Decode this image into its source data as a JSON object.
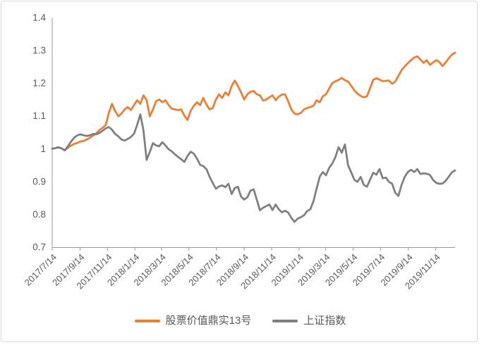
{
  "chart_data": {
    "type": "line",
    "title": "",
    "grid": "off",
    "legend_position": "bottom",
    "x_axis": {
      "unit": "weekly observations",
      "domain_weeks": [
        0,
        128
      ],
      "tick_labels": [
        "2017/7/14",
        "2017/9/14",
        "2017/11/14",
        "2018/1/14",
        "2018/3/14",
        "2018/5/14",
        "2018/7/14",
        "2018/9/14",
        "2018/11/14",
        "2019/1/14",
        "2019/3/14",
        "2019/5/14",
        "2019/7/14",
        "2019/9/14",
        "2019/11/14"
      ],
      "tick_positions_weeks": [
        0,
        8.857,
        17.571,
        26.286,
        34.714,
        43.429,
        52.143,
        61.0,
        69.714,
        78.429,
        86.857,
        95.571,
        104.286,
        113.143,
        121.857
      ]
    },
    "y_axis": {
      "min": 0.7,
      "max": 1.4,
      "step": 0.1,
      "tick_labels": [
        "0.7",
        "0.8",
        "0.9",
        "1",
        "1.1",
        "1.2",
        "1.3",
        "1.4"
      ],
      "tick_values": [
        0.7,
        0.8,
        0.9,
        1.0,
        1.1,
        1.2,
        1.3,
        1.4
      ]
    },
    "series": [
      {
        "name": "股票价值鼎实13号",
        "color": "#ED7D31",
        "values": [
          1.0,
          1.002,
          1.005,
          1.001,
          0.995,
          1.003,
          1.01,
          1.015,
          1.018,
          1.022,
          1.024,
          1.028,
          1.034,
          1.04,
          1.047,
          1.057,
          1.064,
          1.072,
          1.11,
          1.137,
          1.115,
          1.099,
          1.107,
          1.12,
          1.127,
          1.118,
          1.133,
          1.148,
          1.137,
          1.163,
          1.148,
          1.099,
          1.12,
          1.145,
          1.15,
          1.142,
          1.148,
          1.133,
          1.122,
          1.12,
          1.118,
          1.12,
          1.1,
          1.088,
          1.116,
          1.131,
          1.142,
          1.133,
          1.155,
          1.135,
          1.12,
          1.124,
          1.15,
          1.166,
          1.155,
          1.172,
          1.163,
          1.191,
          1.208,
          1.191,
          1.172,
          1.15,
          1.166,
          1.174,
          1.176,
          1.166,
          1.163,
          1.147,
          1.15,
          1.157,
          1.163,
          1.148,
          1.159,
          1.165,
          1.166,
          1.144,
          1.12,
          1.107,
          1.105,
          1.109,
          1.12,
          1.124,
          1.127,
          1.131,
          1.148,
          1.142,
          1.16,
          1.166,
          1.184,
          1.2,
          1.206,
          1.21,
          1.216,
          1.209,
          1.205,
          1.192,
          1.178,
          1.168,
          1.161,
          1.157,
          1.16,
          1.185,
          1.21,
          1.215,
          1.211,
          1.206,
          1.207,
          1.208,
          1.198,
          1.205,
          1.222,
          1.24,
          1.251,
          1.261,
          1.27,
          1.278,
          1.282,
          1.272,
          1.262,
          1.27,
          1.256,
          1.263,
          1.27,
          1.265,
          1.252,
          1.263,
          1.276,
          1.287,
          1.293
        ]
      },
      {
        "name": "上证指数",
        "color": "#7F7F7F",
        "values": [
          1.0,
          1.002,
          1.004,
          1.001,
          0.995,
          1.008,
          1.022,
          1.034,
          1.041,
          1.044,
          1.041,
          1.039,
          1.041,
          1.045,
          1.044,
          1.048,
          1.055,
          1.062,
          1.066,
          1.058,
          1.045,
          1.038,
          1.028,
          1.025,
          1.03,
          1.036,
          1.046,
          1.073,
          1.105,
          1.055,
          0.966,
          0.99,
          1.017,
          1.01,
          1.008,
          1.02,
          1.01,
          0.998,
          0.992,
          0.983,
          0.975,
          0.968,
          0.96,
          0.978,
          0.991,
          0.985,
          0.97,
          0.951,
          0.947,
          0.938,
          0.915,
          0.896,
          0.878,
          0.885,
          0.888,
          0.883,
          0.893,
          0.862,
          0.88,
          0.884,
          0.854,
          0.845,
          0.852,
          0.872,
          0.876,
          0.845,
          0.812,
          0.82,
          0.825,
          0.83,
          0.813,
          0.83,
          0.815,
          0.806,
          0.811,
          0.805,
          0.789,
          0.777,
          0.787,
          0.791,
          0.797,
          0.81,
          0.815,
          0.84,
          0.878,
          0.915,
          0.929,
          0.919,
          0.942,
          0.955,
          0.975,
          1.005,
          0.988,
          1.013,
          0.95,
          0.928,
          0.905,
          0.899,
          0.914,
          0.89,
          0.884,
          0.906,
          0.927,
          0.921,
          0.938,
          0.91,
          0.912,
          0.899,
          0.893,
          0.866,
          0.856,
          0.89,
          0.914,
          0.929,
          0.936,
          0.929,
          0.938,
          0.923,
          0.925,
          0.924,
          0.92,
          0.905,
          0.896,
          0.893,
          0.894,
          0.902,
          0.915,
          0.928,
          0.934
        ]
      }
    ]
  },
  "colors": {
    "axis_line": "#999999",
    "tick_label": "#595959",
    "frame_border": "#D9D9D9",
    "background": "#FFFFFF"
  }
}
